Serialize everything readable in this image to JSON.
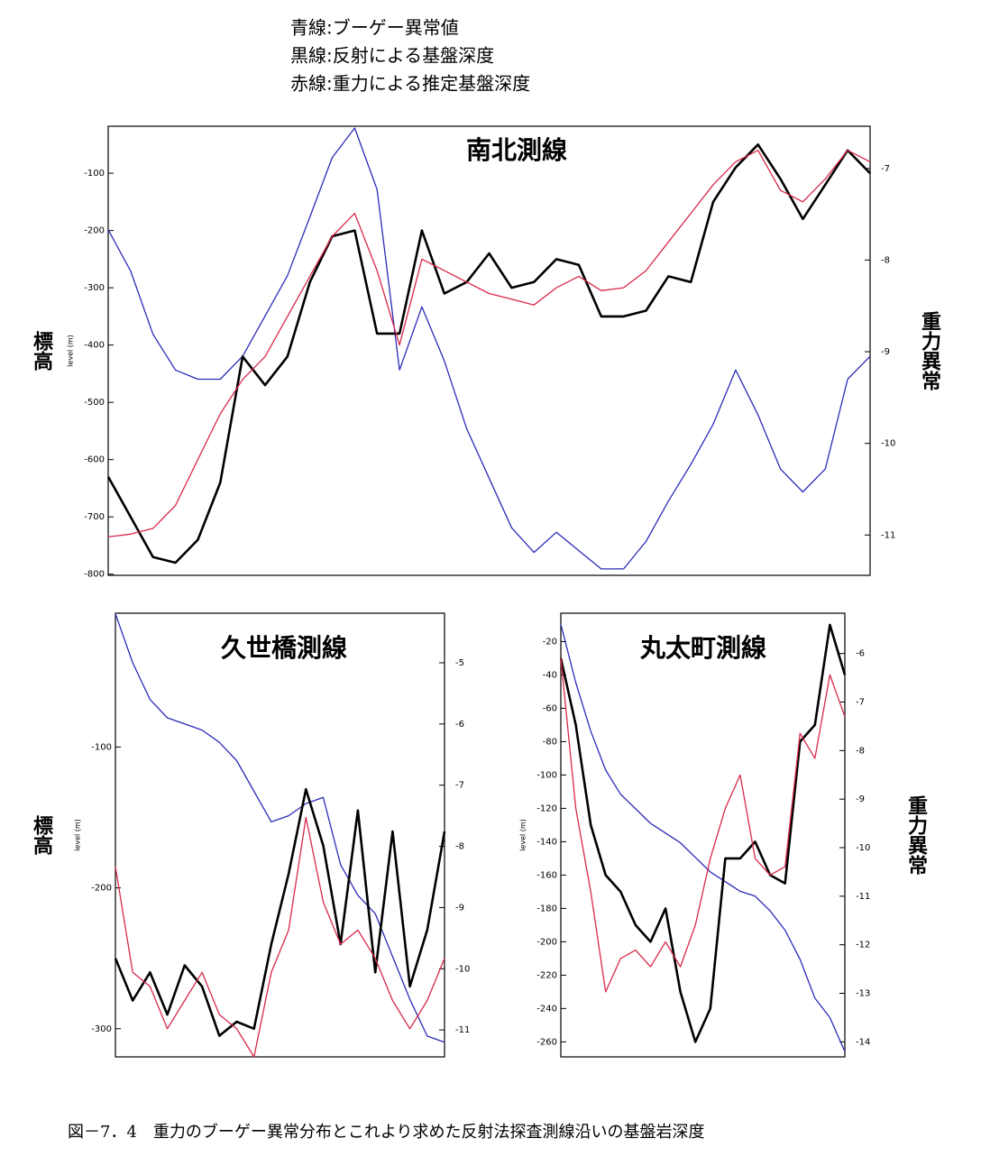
{
  "legend": [
    "青線:ブーゲー異常値",
    "黒線:反射による基盤深度",
    "赤線:重力による推定基盤深度"
  ],
  "caption": "図－7．4　重力のブーゲー異常分布とこれより求めた反射法探査測線沿いの基盤岩深度",
  "chart_data": [
    {
      "type": "line",
      "title": "南北測線",
      "ylabel": "level (m)",
      "y_title": "標高",
      "y2label": "重力異常",
      "ylim": [
        -802,
        -18
      ],
      "yticks": [
        -100,
        -200,
        -300,
        -400,
        -500,
        -600,
        -700,
        -800
      ],
      "y2lim": [
        -11.44,
        -6.54
      ],
      "y2ticks": [
        -7,
        -8,
        -9,
        -10,
        -11
      ],
      "series": [
        {
          "color": "#2b2bb8",
          "axis": "y2",
          "values": [
            -7.67,
            -8.12,
            -8.81,
            -9.2,
            -9.3,
            -9.3,
            -9.05,
            -8.61,
            -8.17,
            -7.53,
            -6.88,
            -6.56,
            -7.23,
            -9.2,
            -8.51,
            -9.1,
            -9.84,
            -10.38,
            -10.92,
            -11.19,
            -10.97,
            -11.17,
            -11.37,
            -11.37,
            -11.07,
            -10.63,
            -10.23,
            -9.79,
            -9.2,
            -9.69,
            -10.28,
            -10.53,
            -10.28,
            -9.3,
            -9.05
          ]
        },
        {
          "color": "#000000",
          "values": [
            -630,
            -700,
            -770,
            -780,
            -740,
            -640,
            -420,
            -470,
            -420,
            -290,
            -210,
            -200,
            -380,
            -380,
            -200,
            -310,
            -290,
            -240,
            -300,
            -290,
            -250,
            -260,
            -350,
            -350,
            -340,
            -280,
            -290,
            -150,
            -90,
            -50,
            -110,
            -180,
            -120,
            -60,
            -100
          ]
        },
        {
          "color": "#d8284a",
          "values": [
            -735,
            -730,
            -720,
            -680,
            -600,
            -520,
            -460,
            -420,
            -350,
            -280,
            -210,
            -170,
            -270,
            -400,
            -250,
            -270,
            -290,
            -310,
            -320,
            -330,
            -300,
            -280,
            -305,
            -300,
            -270,
            -220,
            -170,
            -120,
            -80,
            -60,
            -130,
            -150,
            -110,
            -60,
            -80
          ]
        }
      ]
    },
    {
      "type": "line",
      "title": "久世橋測線",
      "ylabel": "level (m)",
      "y_title": "標高",
      "ylim": [
        -320,
        -5
      ],
      "yticks": [
        -100,
        -200,
        -300
      ],
      "y2lim": [
        -11.44,
        -4.19
      ],
      "y2ticks": [
        -5,
        -6,
        -7,
        -8,
        -9,
        -10,
        -11
      ],
      "series": [
        {
          "color": "#2b2bb8",
          "axis": "y2",
          "values": [
            -4.2,
            -5.0,
            -5.6,
            -5.9,
            -6.0,
            -6.1,
            -6.3,
            -6.6,
            -7.1,
            -7.6,
            -7.5,
            -7.3,
            -7.2,
            -8.3,
            -8.8,
            -9.1,
            -9.8,
            -10.5,
            -11.1,
            -11.2
          ]
        },
        {
          "color": "#000000",
          "values": [
            -250,
            -280,
            -260,
            -290,
            -255,
            -270,
            -305,
            -295,
            -300,
            -240,
            -190,
            -130,
            -170,
            -240,
            -145,
            -260,
            -160,
            -270,
            -230,
            -160
          ]
        },
        {
          "color": "#d8284a",
          "values": [
            -185,
            -260,
            -270,
            -300,
            -280,
            -260,
            -290,
            -300,
            -320,
            -260,
            -230,
            -150,
            -210,
            -240,
            -230,
            -250,
            -280,
            -300,
            -280,
            -250
          ]
        }
      ]
    },
    {
      "type": "line",
      "title": "丸太町測線",
      "ylabel": "level (m)",
      "y2label": "重力異常",
      "ylim": [
        -269,
        -3
      ],
      "yticks": [
        -20,
        -40,
        -60,
        -80,
        -100,
        -120,
        -140,
        -160,
        -180,
        -200,
        -220,
        -240,
        -260
      ],
      "y2lim": [
        -14.31,
        -5.17
      ],
      "y2ticks": [
        -6,
        -7,
        -8,
        -9,
        -10,
        -11,
        -12,
        -13,
        -14
      ],
      "series": [
        {
          "color": "#2b2bb8",
          "axis": "y2",
          "values": [
            -5.4,
            -6.6,
            -7.6,
            -8.4,
            -8.9,
            -9.2,
            -9.5,
            -9.7,
            -9.9,
            -10.2,
            -10.5,
            -10.7,
            -10.9,
            -11.0,
            -11.3,
            -11.7,
            -12.3,
            -13.1,
            -13.5,
            -14.2
          ]
        },
        {
          "color": "#000000",
          "values": [
            -30,
            -70,
            -130,
            -160,
            -170,
            -190,
            -200,
            -180,
            -230,
            -260,
            -240,
            -150,
            -150,
            -140,
            -160,
            -165,
            -80,
            -70,
            -10,
            -40
          ]
        },
        {
          "color": "#d8284a",
          "values": [
            -30,
            -120,
            -170,
            -230,
            -210,
            -205,
            -215,
            -200,
            -215,
            -190,
            -150,
            -120,
            -100,
            -150,
            -160,
            -155,
            -75,
            -90,
            -40,
            -65
          ]
        }
      ]
    }
  ]
}
